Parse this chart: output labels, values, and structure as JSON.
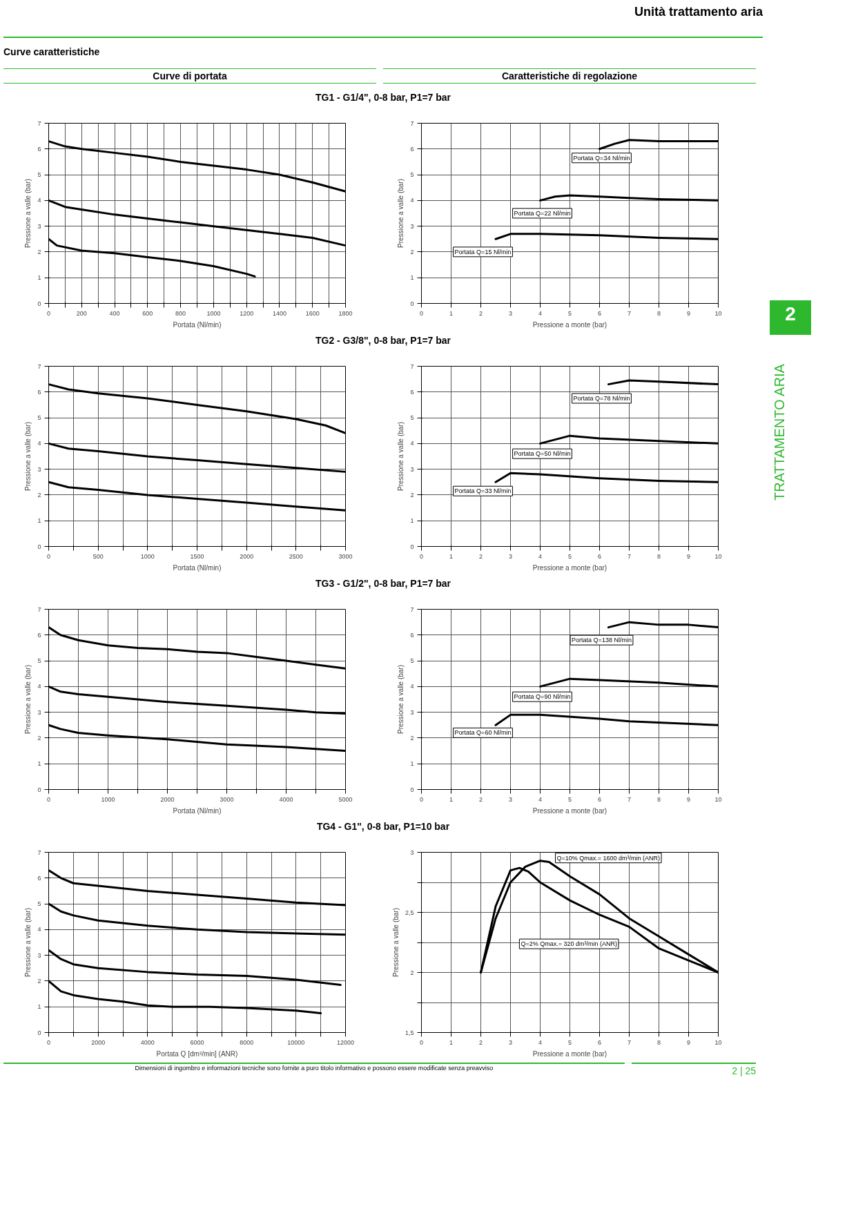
{
  "chart_data": [
    {
      "type": "line",
      "title": "TG1 - G1/4\", 0-8 bar, P1=7 bar",
      "xlabel": "Portata (Nl/min)",
      "ylabel": "Pressione a valle (bar)",
      "xlim": [
        0,
        1800
      ],
      "ylim": [
        0,
        7
      ],
      "grid": true,
      "xticks": [
        0,
        {
          "value": 100,
          "label": null
        },
        200,
        {
          "value": 300,
          "label": null
        },
        400,
        {
          "value": 500,
          "label": null
        },
        600,
        {
          "value": 700,
          "label": null
        },
        800,
        {
          "value": 900,
          "label": null
        },
        1000,
        {
          "value": 1100,
          "label": null
        },
        1200,
        {
          "value": 1300,
          "label": null
        },
        1400,
        {
          "value": 1500,
          "label": null
        },
        1600,
        {
          "value": 1700,
          "label": null
        },
        1800
      ],
      "yticks": [
        0,
        1,
        2,
        3,
        4,
        5,
        6,
        7
      ],
      "annotations": [
        "Unità trattamento aria",
        "Curve caratteristiche",
        "Curve di portata",
        "Caratteristiche di regolazione",
        "2",
        "TRATTAMENTO ARIA",
        "Dimensioni di ingombro e informazioni tecniche sono fornite a puro titolo informativo e possono essere modificate senza preavviso",
        "2 | 25"
      ],
      "series": [
        {
          "color": "#000000",
          "x": [
            0,
            100,
            200,
            400,
            600,
            800,
            1000,
            1200,
            1400,
            1600,
            1800
          ],
          "values": [
            6.3,
            6.1,
            6.0,
            5.85,
            5.7,
            5.5,
            5.35,
            5.2,
            5.0,
            4.7,
            4.35
          ]
        },
        {
          "color": "#000000",
          "x": [
            0,
            100,
            200,
            400,
            600,
            800,
            1000,
            1200,
            1400,
            1600,
            1800
          ],
          "values": [
            4.0,
            3.75,
            3.65,
            3.45,
            3.3,
            3.15,
            3.0,
            2.85,
            2.7,
            2.55,
            2.25
          ]
        },
        {
          "color": "#000000",
          "x": [
            0,
            50,
            200,
            400,
            600,
            800,
            1000,
            1200,
            1250
          ],
          "values": [
            2.5,
            2.25,
            2.05,
            1.95,
            1.8,
            1.65,
            1.45,
            1.15,
            1.05
          ]
        }
      ]
    },
    {
      "type": "line",
      "xlabel": "Pressione a monte (bar)",
      "ylabel": "Pressione a valle (bar)",
      "xlim": [
        0,
        10
      ],
      "ylim": [
        0,
        7
      ],
      "grid": true,
      "xticks": [
        0,
        1,
        2,
        3,
        4,
        5,
        6,
        7,
        8,
        9,
        10
      ],
      "yticks": [
        0,
        1,
        2,
        3,
        4,
        5,
        6,
        7
      ],
      "series": [
        {
          "name": "Portata Q=34 Nl/min",
          "color": "#000000",
          "x": [
            6,
            6.5,
            7,
            8,
            10
          ],
          "values": [
            6.0,
            6.2,
            6.35,
            6.3,
            6.3
          ]
        },
        {
          "name": "Portata Q=22 Nl/min",
          "color": "#000000",
          "x": [
            4,
            4.5,
            5,
            6,
            7,
            8,
            10
          ],
          "values": [
            4.0,
            4.15,
            4.2,
            4.15,
            4.1,
            4.05,
            4.0
          ]
        },
        {
          "name": "Portata Q=15 Nl/min",
          "color": "#000000",
          "x": [
            2.5,
            3,
            4,
            6,
            8,
            10
          ],
          "values": [
            2.5,
            2.7,
            2.7,
            2.65,
            2.55,
            2.5
          ]
        }
      ]
    },
    {
      "type": "line",
      "title": "TG2 - G3/8\", 0-8 bar, P1=7 bar",
      "xlabel": "Portata (Nl/min)",
      "ylabel": "Pressione a valle (bar)",
      "xlim": [
        0,
        3000
      ],
      "ylim": [
        0,
        7
      ],
      "grid": true,
      "xticks": [
        0,
        {
          "value": 250,
          "label": null
        },
        500,
        {
          "value": 750,
          "label": null
        },
        1000,
        {
          "value": 1250,
          "label": null
        },
        1500,
        {
          "value": 1750,
          "label": null
        },
        2000,
        {
          "value": 2250,
          "label": null
        },
        2500,
        {
          "value": 2750,
          "label": null
        },
        3000
      ],
      "yticks": [
        0,
        1,
        2,
        3,
        4,
        5,
        6,
        7
      ],
      "series": [
        {
          "color": "#000000",
          "x": [
            0,
            200,
            500,
            1000,
            1500,
            2000,
            2500,
            2800,
            3000
          ],
          "values": [
            6.3,
            6.1,
            5.95,
            5.75,
            5.5,
            5.25,
            4.95,
            4.7,
            4.4
          ]
        },
        {
          "color": "#000000",
          "x": [
            0,
            200,
            500,
            1000,
            1500,
            2000,
            2500,
            3000
          ],
          "values": [
            4.0,
            3.8,
            3.7,
            3.5,
            3.35,
            3.2,
            3.05,
            2.9
          ]
        },
        {
          "color": "#000000",
          "x": [
            0,
            200,
            500,
            1000,
            1500,
            2000,
            2500,
            3000
          ],
          "values": [
            2.5,
            2.3,
            2.2,
            2.0,
            1.85,
            1.7,
            1.55,
            1.4
          ]
        }
      ]
    },
    {
      "type": "line",
      "xlabel": "Pressione a monte (bar)",
      "ylabel": "Pressione a valle (bar)",
      "xlim": [
        0,
        10
      ],
      "ylim": [
        0,
        7
      ],
      "grid": true,
      "xticks": [
        0,
        1,
        2,
        3,
        4,
        5,
        6,
        7,
        8,
        9,
        10
      ],
      "yticks": [
        0,
        1,
        2,
        3,
        4,
        5,
        6,
        7
      ],
      "series": [
        {
          "name": "Portata Q=78 Nl/min",
          "color": "#000000",
          "x": [
            6.3,
            7,
            8,
            10
          ],
          "values": [
            6.3,
            6.45,
            6.4,
            6.3
          ]
        },
        {
          "name": "Portata Q=50 Nl/min",
          "color": "#000000",
          "x": [
            4,
            5,
            6,
            8,
            10
          ],
          "values": [
            4.0,
            4.3,
            4.2,
            4.1,
            4.0
          ]
        },
        {
          "name": "Portata Q=33 Nl/min",
          "color": "#000000",
          "x": [
            2.5,
            3,
            4,
            6,
            8,
            10
          ],
          "values": [
            2.5,
            2.85,
            2.8,
            2.65,
            2.55,
            2.5
          ]
        }
      ]
    },
    {
      "type": "line",
      "title": "TG3 - G1/2\", 0-8 bar, P1=7 bar",
      "xlabel": "Portata (Nl/min)",
      "ylabel": "Pressione a valle (bar)",
      "xlim": [
        0,
        5000
      ],
      "ylim": [
        0,
        7
      ],
      "grid": true,
      "xticks": [
        0,
        {
          "value": 500,
          "label": null
        },
        1000,
        {
          "value": 1500,
          "label": null
        },
        2000,
        {
          "value": 2500,
          "label": null
        },
        3000,
        {
          "value": 3500,
          "label": null
        },
        4000,
        {
          "value": 4500,
          "label": null
        },
        5000
      ],
      "yticks": [
        0,
        1,
        2,
        3,
        4,
        5,
        6,
        7
      ],
      "series": [
        {
          "color": "#000000",
          "x": [
            0,
            200,
            500,
            1000,
            1500,
            2000,
            2500,
            3000,
            3500,
            4000,
            4500,
            5000
          ],
          "values": [
            6.3,
            6.0,
            5.8,
            5.6,
            5.5,
            5.45,
            5.35,
            5.3,
            5.15,
            5.0,
            4.85,
            4.7
          ]
        },
        {
          "color": "#000000",
          "x": [
            0,
            200,
            500,
            1000,
            2000,
            3000,
            4000,
            4500,
            5000
          ],
          "values": [
            4.0,
            3.8,
            3.7,
            3.6,
            3.4,
            3.25,
            3.1,
            3.0,
            2.95
          ]
        },
        {
          "color": "#000000",
          "x": [
            0,
            200,
            500,
            1000,
            2000,
            2500,
            3000,
            4000,
            5000
          ],
          "values": [
            2.5,
            2.35,
            2.2,
            2.1,
            1.95,
            1.85,
            1.75,
            1.65,
            1.5
          ]
        }
      ]
    },
    {
      "type": "line",
      "xlabel": "Pressione a monte (bar)",
      "ylabel": "Pressione a valle (bar)",
      "xlim": [
        0,
        10
      ],
      "ylim": [
        0,
        7
      ],
      "grid": true,
      "xticks": [
        0,
        1,
        2,
        3,
        4,
        5,
        6,
        7,
        8,
        9,
        10
      ],
      "yticks": [
        0,
        1,
        2,
        3,
        4,
        5,
        6,
        7
      ],
      "series": [
        {
          "name": "Portata Q=138 Nl/min",
          "color": "#000000",
          "x": [
            6.3,
            7,
            8,
            9,
            10
          ],
          "values": [
            6.3,
            6.5,
            6.4,
            6.4,
            6.3
          ]
        },
        {
          "name": "Portata Q=90 Nl/min",
          "color": "#000000",
          "x": [
            4,
            5,
            6,
            8,
            10
          ],
          "values": [
            4.0,
            4.3,
            4.25,
            4.15,
            4.0
          ]
        },
        {
          "name": "Portata Q=60 Nl/min",
          "color": "#000000",
          "x": [
            2.5,
            3,
            4,
            6,
            7,
            10
          ],
          "values": [
            2.5,
            2.9,
            2.9,
            2.75,
            2.65,
            2.5
          ]
        }
      ]
    },
    {
      "type": "line",
      "title": "TG4 - G1\", 0-8 bar, P1=10 bar",
      "xlabel": "Portata Q [dm³/min] (ANR)",
      "ylabel": "Pressione a valle (bar)",
      "xlim": [
        0,
        12000
      ],
      "ylim": [
        0,
        7
      ],
      "grid": true,
      "xticks": [
        0,
        {
          "value": 1000,
          "label": null
        },
        2000,
        {
          "value": 3000,
          "label": null
        },
        4000,
        {
          "value": 5000,
          "label": null
        },
        6000,
        {
          "value": 7000,
          "label": null
        },
        8000,
        {
          "value": 9000,
          "label": null
        },
        10000,
        {
          "value": 11000,
          "label": null
        },
        12000
      ],
      "yticks": [
        0,
        1,
        2,
        3,
        4,
        5,
        6,
        7
      ],
      "series": [
        {
          "color": "#000000",
          "x": [
            0,
            500,
            1000,
            2000,
            4000,
            6000,
            8000,
            10000,
            12000
          ],
          "values": [
            6.3,
            6.0,
            5.8,
            5.7,
            5.5,
            5.35,
            5.2,
            5.05,
            4.95
          ]
        },
        {
          "color": "#000000",
          "x": [
            0,
            500,
            1000,
            2000,
            4000,
            6000,
            8000,
            10000,
            12000
          ],
          "values": [
            5.0,
            4.7,
            4.55,
            4.35,
            4.15,
            4.0,
            3.9,
            3.85,
            3.8
          ]
        },
        {
          "color": "#000000",
          "x": [
            0,
            500,
            1000,
            2000,
            4000,
            6000,
            8000,
            10000,
            11800
          ],
          "values": [
            3.2,
            2.85,
            2.65,
            2.5,
            2.35,
            2.25,
            2.2,
            2.05,
            1.85
          ]
        },
        {
          "color": "#000000",
          "x": [
            0,
            500,
            1000,
            2000,
            3000,
            4000,
            5000,
            6500,
            8000,
            10000,
            11000
          ],
          "values": [
            2.0,
            1.6,
            1.45,
            1.3,
            1.2,
            1.05,
            1.0,
            1.0,
            0.95,
            0.85,
            0.75
          ]
        }
      ]
    },
    {
      "type": "line",
      "xlabel": "Pressione a monte (bar)",
      "ylabel": "Pressione a valle (bar)",
      "xlim": [
        0,
        10
      ],
      "ylim": [
        1.5,
        3
      ],
      "grid": true,
      "xticks": [
        0,
        1,
        2,
        3,
        4,
        5,
        6,
        7,
        8,
        9,
        10
      ],
      "yticks": [
        {
          "value": 1.5,
          "label": "1,5"
        },
        {
          "value": 1.75,
          "label": null
        },
        2,
        {
          "value": 2.25,
          "label": null
        },
        {
          "value": 2.5,
          "label": "2,5"
        },
        {
          "value": 2.75,
          "label": null
        },
        3
      ],
      "series": [
        {
          "name": "Q=10% Qmax.= 1600 dm³/min (ANR)",
          "color": "#000000",
          "x": [
            2,
            2.5,
            3,
            3.5,
            4,
            4.3,
            5,
            6,
            7,
            8,
            9,
            10
          ],
          "values": [
            2.0,
            2.45,
            2.75,
            2.88,
            2.93,
            2.92,
            2.8,
            2.65,
            2.45,
            2.3,
            2.15,
            2.0
          ]
        },
        {
          "name": "Q=2% Qmax.= 320 dm³/min (ANR)",
          "color": "#000000",
          "x": [
            2,
            2.5,
            3,
            3.3,
            3.6,
            4,
            5,
            6,
            7,
            8,
            9,
            10
          ],
          "values": [
            2.0,
            2.55,
            2.85,
            2.87,
            2.84,
            2.75,
            2.6,
            2.48,
            2.38,
            2.2,
            2.1,
            2.0
          ]
        }
      ]
    }
  ]
}
